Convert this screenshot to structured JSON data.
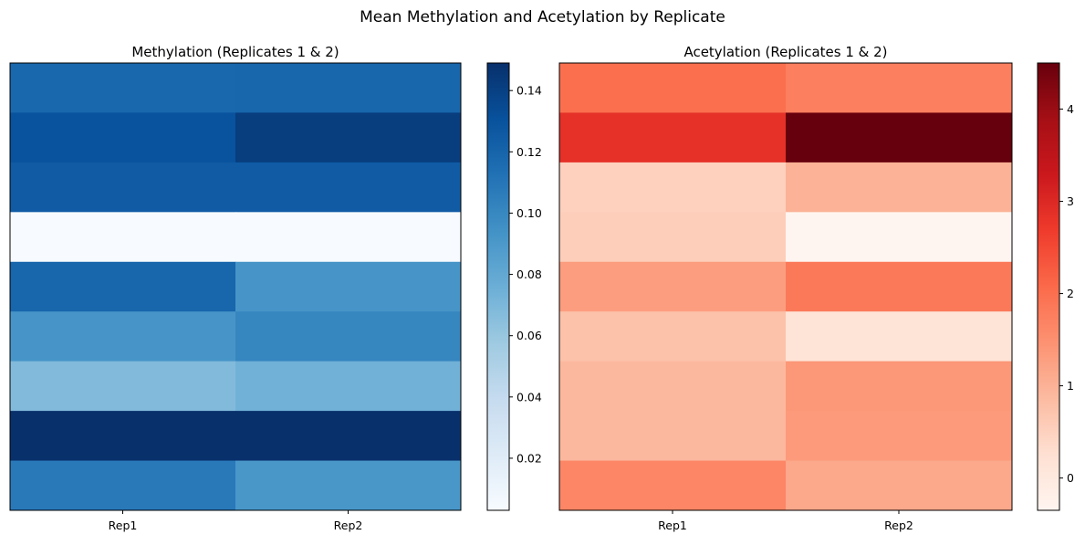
{
  "figure": {
    "title": "Mean Methylation and Acetylation by Replicate"
  },
  "chart_data": [
    {
      "type": "heatmap",
      "title": "Methylation (Replicates 1 & 2)",
      "colormap": "Blues",
      "colormap_stops": [
        "#f7fbff",
        "#deebf7",
        "#c6dbef",
        "#9ecae1",
        "#6baed6",
        "#4292c6",
        "#2171b5",
        "#08519c",
        "#08306b"
      ],
      "x_ticklabels": [
        "Rep1",
        "Rep2"
      ],
      "values": [
        [
          0.118,
          0.119
        ],
        [
          0.13,
          0.142
        ],
        [
          0.125,
          0.125
        ],
        [
          0.003,
          0.003
        ],
        [
          0.119,
          0.092
        ],
        [
          0.092,
          0.101
        ],
        [
          0.068,
          0.074
        ],
        [
          0.149,
          0.149
        ],
        [
          0.108,
          0.091
        ]
      ],
      "vmin": 0.003,
      "vmax": 0.149,
      "colorbar_ticks": [
        0.02,
        0.04,
        0.06,
        0.08,
        0.1,
        0.12,
        0.14
      ],
      "colorbar_ticklabels": [
        "0.02",
        "0.04",
        "0.06",
        "0.08",
        "0.10",
        "0.12",
        "0.14"
      ]
    },
    {
      "type": "heatmap",
      "title": "Acetylation (Replicates 1 & 2)",
      "colormap": "Reds",
      "colormap_stops": [
        "#fff5f0",
        "#fee0d2",
        "#fcbba1",
        "#fc9272",
        "#fb6a4a",
        "#ef3b2c",
        "#cb181d",
        "#a50f15",
        "#67000d"
      ],
      "x_ticklabels": [
        "Rep1",
        "Rep2"
      ],
      "values": [
        [
          2.0,
          1.75
        ],
        [
          2.85,
          4.5
        ],
        [
          0.5,
          1.0
        ],
        [
          0.55,
          -0.35
        ],
        [
          1.3,
          1.85
        ],
        [
          0.75,
          0.15
        ],
        [
          0.9,
          1.4
        ],
        [
          0.9,
          1.35
        ],
        [
          1.65,
          1.15
        ]
      ],
      "vmin": -0.35,
      "vmax": 4.5,
      "colorbar_ticks": [
        0,
        1,
        2,
        3,
        4
      ],
      "colorbar_ticklabels": [
        "0",
        "1",
        "2",
        "3",
        "4"
      ]
    }
  ]
}
